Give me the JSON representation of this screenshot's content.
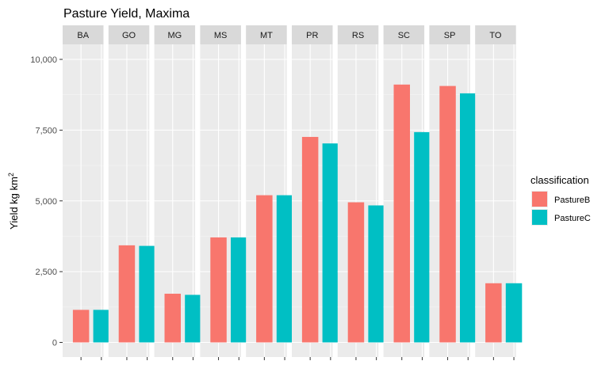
{
  "chart_data": {
    "type": "bar",
    "title": "Pasture Yield, Maxima",
    "ylabel": "Yield kg km",
    "ylabel_superscript": "2",
    "xlabel": "",
    "facet_layout": "one row of panels, one per state",
    "categories": [
      "BA",
      "GO",
      "MG",
      "MS",
      "MT",
      "PR",
      "RS",
      "SC",
      "SP",
      "TO"
    ],
    "ylim": [
      0,
      11000
    ],
    "y_ticks": [
      0,
      2500,
      5000,
      7500,
      10000
    ],
    "y_tick_labels": [
      "0",
      "2,500",
      "5,000",
      "7,500",
      "10,000"
    ],
    "grid": true,
    "legend": {
      "title": "classification",
      "position": "right"
    },
    "series": [
      {
        "name": "PastureB",
        "color": "#F8766D",
        "values": [
          1150,
          3430,
          1720,
          3710,
          5200,
          7260,
          4950,
          9110,
          9060,
          2090
        ]
      },
      {
        "name": "PastureC",
        "color": "#00BFC4",
        "values": [
          1150,
          3410,
          1680,
          3710,
          5200,
          7030,
          4840,
          7430,
          8800,
          2090
        ]
      }
    ]
  },
  "style": {
    "panel_background": "#EBEBEB",
    "strip_background": "#D9D9D9",
    "grid_major": "#FFFFFF",
    "grid_minor": "#F5F5F5",
    "tick_color": "#333333"
  }
}
